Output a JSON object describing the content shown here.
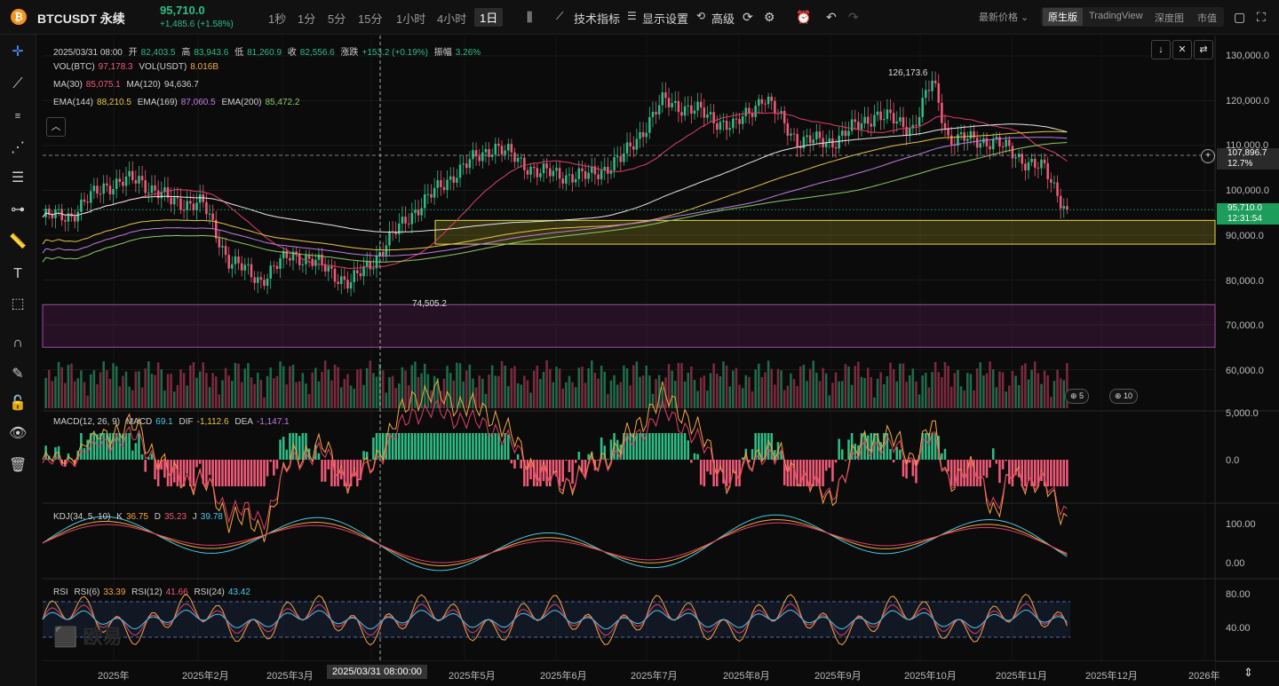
{
  "header": {
    "symbol_icon": "₿",
    "symbol": "BTCUSDT 永续",
    "last_price": "95,710.0",
    "change": "+1,485.6 (+1.58%)",
    "timeframes": [
      "1秒",
      "1分",
      "5分",
      "15分",
      "1小时",
      "4小时",
      "1日"
    ],
    "active_timeframe": "1日",
    "toolbar": {
      "indicators": "技术指标",
      "display": "显示设置",
      "advanced": "高级"
    },
    "price_type": "最新价格 ⌄",
    "views": [
      "原生版",
      "TradingView",
      "深度图",
      "市值"
    ],
    "active_view": "原生版"
  },
  "legend": {
    "ohlc": {
      "date": "2025/03/31 08:00",
      "open_label": "开",
      "open": "82,403.5",
      "high_label": "高",
      "high": "83,943.6",
      "low_label": "低",
      "low": "81,260.9",
      "close_label": "收",
      "close": "82,556.6",
      "chg_label": "涨跌",
      "chg": "+153.2 (+0.19%)",
      "amp_label": "振幅",
      "amp": "3.26%"
    },
    "vol": {
      "btc_label": "VOL(BTC)",
      "btc": "97,178.3",
      "usdt_label": "VOL(USDT)",
      "usdt": "8.016B"
    },
    "ma": {
      "ma30_label": "MA(30)",
      "ma30": "85,075.1",
      "ma120_label": "MA(120)",
      "ma120": "94,636.7"
    },
    "ema": {
      "e144_label": "EMA(144)",
      "e144": "88,210.5",
      "e169_label": "EMA(169)",
      "e169": "87,060.5",
      "e200_label": "EMA(200)",
      "e200": "85,472.2"
    },
    "macd": {
      "label": "MACD(12, 26, 9)",
      "macd_label": "MACD",
      "macd": "69.1",
      "dif_label": "DIF",
      "dif": "-1,112.6",
      "dea_label": "DEA",
      "dea": "-1,147.1"
    },
    "kdj": {
      "label": "KDJ(34, 5, 10)",
      "k_label": "K",
      "k": "36.75",
      "d_label": "D",
      "d": "35.23",
      "j_label": "J",
      "j": "39.78"
    },
    "rsi": {
      "label": "RSI",
      "r6_label": "RSI(6)",
      "r6": "33.39",
      "r12_label": "RSI(12)",
      "r12": "41.66",
      "r24_label": "RSI(24)",
      "r24": "43.42"
    }
  },
  "price_axis": [
    "130,000.0",
    "120,000.0",
    "110,000.0",
    "100,000.0",
    "90,000.0",
    "80,000.0",
    "70,000.0",
    "60,000.0"
  ],
  "macd_axis": [
    "5,000.0",
    "0.0"
  ],
  "kdj_axis": [
    "100.00",
    "0.00"
  ],
  "rsi_axis": [
    "80.00",
    "40.00"
  ],
  "price_labels": {
    "crosshair_price": "107,896.7",
    "crosshair_pct": "12.7%",
    "last_price": "95,710.0",
    "countdown": "12:31:54"
  },
  "highlights": {
    "high": "126,173.6",
    "low": "74,505.2"
  },
  "badges": [
    "5",
    "10"
  ],
  "x_axis": {
    "months": [
      "2025年",
      "2025年2月",
      "2025年3月",
      "2025年5月",
      "2025年6月",
      "2025年7月",
      "2025年8月",
      "2025年9月",
      "2025年10月",
      "2025年11月",
      "2025年12月",
      "2026年"
    ],
    "crosshair_date": "2025/03/31 08:00:00"
  },
  "watermark": "欧易",
  "colors": {
    "up": "#2ebd85",
    "down": "#f05a78",
    "background": "#0b0b0b",
    "last_price_bg": "#1d9d5c"
  },
  "chart_data": {
    "type": "candlestick",
    "symbol": "BTCUSDT",
    "interval": "1d",
    "ylim": [
      60000,
      135000
    ],
    "shown_high": 126173.6,
    "shown_low": 74505.2,
    "last": 95710.0,
    "closes_sampled": [
      [
        "2025-01-01",
        94000
      ],
      [
        "2025-01-10",
        94500
      ],
      [
        "2025-01-20",
        101000
      ],
      [
        "2025-01-31",
        102500
      ],
      [
        "2025-02-10",
        97500
      ],
      [
        "2025-02-20",
        97000
      ],
      [
        "2025-02-28",
        84500
      ],
      [
        "2025-03-10",
        80000
      ],
      [
        "2025-03-20",
        86000
      ],
      [
        "2025-03-31",
        82556.6
      ],
      [
        "2025-04-07",
        79000
      ],
      [
        "2025-04-15",
        85000
      ],
      [
        "2025-04-25",
        94000
      ],
      [
        "2025-05-10",
        104000
      ],
      [
        "2025-05-22",
        110000
      ],
      [
        "2025-06-05",
        104000
      ],
      [
        "2025-06-20",
        103000
      ],
      [
        "2025-07-01",
        107000
      ],
      [
        "2025-07-14",
        120000
      ],
      [
        "2025-07-25",
        117500
      ],
      [
        "2025-08-05",
        114000
      ],
      [
        "2025-08-14",
        121000
      ],
      [
        "2025-08-25",
        111000
      ],
      [
        "2025-09-05",
        111000
      ],
      [
        "2025-09-18",
        117000
      ],
      [
        "2025-09-30",
        114000
      ],
      [
        "2025-10-06",
        124500
      ],
      [
        "2025-10-11",
        111500
      ],
      [
        "2025-10-25",
        111000
      ],
      [
        "2025-11-03",
        107000
      ],
      [
        "2025-11-10",
        104500
      ],
      [
        "2025-11-17",
        95710
      ]
    ],
    "zones": [
      {
        "name": "yellow-zone",
        "from": 88000,
        "to": 93300
      },
      {
        "name": "purple-zone",
        "from": 65000,
        "to": 74500
      }
    ]
  }
}
